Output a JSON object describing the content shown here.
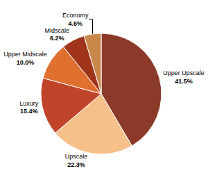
{
  "chart_data": {
    "type": "pie",
    "categories": [
      "Upper Upscale",
      "Upscale",
      "Luxury",
      "Upper Midscale",
      "Midscale",
      "Economy"
    ],
    "values": [
      41.5,
      22.3,
      15.4,
      10.0,
      6.2,
      4.6
    ],
    "value_labels": [
      "41.5%",
      "22.3%",
      "15.4%",
      "10.0%",
      "6.2%",
      "4.6%"
    ],
    "colors": [
      "#8B3A2A",
      "#F5C08A",
      "#C0442A",
      "#E07030",
      "#A0341A",
      "#C8884A"
    ],
    "data_labels": true
  }
}
